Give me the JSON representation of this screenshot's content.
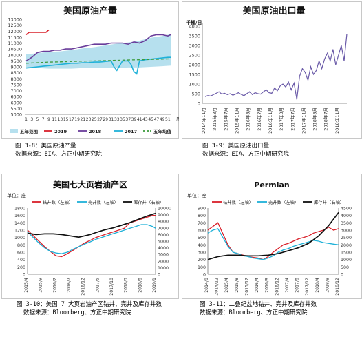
{
  "charts": [
    {
      "type": "line",
      "title": "美国原油产量",
      "ylabel": "",
      "xlabel": "",
      "x_unit_label": "周",
      "ylim": [
        5000,
        13000
      ],
      "yticks": [
        5000,
        5500,
        6000,
        6500,
        7000,
        7500,
        8000,
        8500,
        9000,
        9500,
        10000,
        10500,
        11000,
        11500,
        12000,
        12500,
        13000
      ],
      "xticks": [
        1,
        3,
        5,
        7,
        9,
        11,
        13,
        15,
        17,
        19,
        21,
        23,
        25,
        27,
        29,
        31,
        33,
        35,
        37,
        39,
        41,
        43,
        45,
        47,
        49,
        51
      ],
      "band": {
        "name": "五年范围",
        "x": [
          1,
          5,
          9,
          13,
          17,
          21,
          25,
          29,
          33,
          37,
          41,
          45,
          49,
          52
        ],
        "low": [
          8950,
          8900,
          8850,
          8850,
          8850,
          8900,
          8900,
          8900,
          8900,
          8950,
          8950,
          9000,
          9050,
          9100
        ],
        "high": [
          10050,
          10150,
          10250,
          10300,
          10400,
          10550,
          10650,
          10800,
          10950,
          11050,
          11200,
          11450,
          11600,
          11750
        ]
      },
      "series": [
        {
          "name": "2019",
          "color": "#d9202a",
          "x": [
            1,
            2,
            4,
            6,
            8,
            9
          ],
          "values": [
            11700,
            11900,
            11900,
            11900,
            11900,
            12100
          ]
        },
        {
          "name": "2018",
          "color": "#6a3d9a",
          "x": [
            1,
            3,
            5,
            7,
            9,
            11,
            13,
            15,
            17,
            19,
            21,
            23,
            25,
            27,
            29,
            31,
            33,
            35,
            37,
            39,
            41,
            43,
            45,
            47,
            49,
            51,
            52
          ],
          "values": [
            9500,
            9800,
            10200,
            10300,
            10300,
            10400,
            10400,
            10500,
            10500,
            10600,
            10700,
            10800,
            10900,
            10900,
            10900,
            11000,
            11000,
            11000,
            10900,
            11100,
            11000,
            11200,
            11600,
            11700,
            11700,
            11600,
            11700
          ]
        },
        {
          "name": "2017",
          "color": "#1fb1d8",
          "x": [
            1,
            3,
            5,
            7,
            9,
            11,
            13,
            15,
            17,
            19,
            21,
            23,
            25,
            27,
            29,
            31,
            32,
            33,
            35,
            37,
            38,
            39,
            40,
            41,
            43,
            45,
            47,
            49,
            51,
            52
          ],
          "values": [
            8900,
            8950,
            9000,
            9050,
            9100,
            9150,
            9200,
            9250,
            9300,
            9300,
            9350,
            9350,
            9400,
            9400,
            9450,
            9500,
            9000,
            8700,
            9500,
            9500,
            9200,
            8600,
            8400,
            9500,
            9600,
            9650,
            9700,
            9750,
            9800,
            9800
          ]
        },
        {
          "name": "五年均值",
          "color": "#3b9a3b",
          "dash": true,
          "x": [
            1,
            5,
            9,
            13,
            17,
            21,
            25,
            29,
            33,
            37,
            41,
            45,
            49,
            52
          ],
          "values": [
            9300,
            9350,
            9400,
            9420,
            9450,
            9480,
            9500,
            9520,
            9550,
            9580,
            9600,
            9620,
            9650,
            9680
          ]
        }
      ]
    },
    {
      "type": "line",
      "title": "美国原油出口量",
      "ylabel": "千桶/日",
      "ylim": [
        0,
        4000
      ],
      "yticks": [
        0,
        500,
        1000,
        1500,
        2000,
        2500,
        3000,
        3500,
        4000
      ],
      "xlim": [
        0,
        51
      ],
      "xticks": [
        {
          "label": "2014年11月",
          "x": 0
        },
        {
          "label": "2015年3月",
          "x": 4
        },
        {
          "label": "2015年7月",
          "x": 8
        },
        {
          "label": "2015年11月",
          "x": 12
        },
        {
          "label": "2016年3月",
          "x": 16
        },
        {
          "label": "2016年7月",
          "x": 20
        },
        {
          "label": "2016年11月",
          "x": 24
        },
        {
          "label": "2017年3月",
          "x": 28
        },
        {
          "label": "2017年7月",
          "x": 32
        },
        {
          "label": "2017年11月",
          "x": 36
        },
        {
          "label": "2018年3月",
          "x": 40
        },
        {
          "label": "2018年7月",
          "x": 44
        },
        {
          "label": "2018年11月",
          "x": 48
        }
      ],
      "series": [
        {
          "name": "",
          "color": "#6a5aa8",
          "x": [
            0,
            1,
            2,
            3,
            4,
            5,
            6,
            7,
            8,
            9,
            10,
            11,
            12,
            13,
            14,
            15,
            16,
            17,
            18,
            19,
            20,
            21,
            22,
            23,
            24,
            25,
            26,
            27,
            28,
            29,
            30,
            31,
            32,
            33,
            34,
            35,
            36,
            37,
            38,
            39,
            40,
            41,
            42,
            43,
            44,
            45,
            46,
            47,
            48,
            49,
            50,
            51
          ],
          "values": [
            350,
            400,
            380,
            450,
            520,
            600,
            480,
            520,
            450,
            500,
            420,
            480,
            550,
            460,
            400,
            500,
            600,
            450,
            550,
            500,
            480,
            600,
            700,
            550,
            520,
            800,
            650,
            900,
            1000,
            850,
            1100,
            700,
            1050,
            200,
            1400,
            1800,
            1600,
            1200,
            1900,
            1500,
            1700,
            2200,
            1800,
            2300,
            2600,
            2200,
            2800,
            2000,
            2500,
            3000,
            2200,
            3600
          ]
        }
      ]
    },
    {
      "type": "line",
      "title": "美国七大页岩油产区",
      "ylabel": "单位：座",
      "ylim": [
        0,
        1800
      ],
      "yticks": [
        0,
        200,
        400,
        600,
        800,
        1000,
        1200,
        1400,
        1600,
        1800
      ],
      "y2lim": [
        0,
        10000
      ],
      "y2ticks": [
        0,
        1000,
        2000,
        3000,
        4000,
        5000,
        6000,
        7000,
        8000,
        9000,
        10000
      ],
      "xticks": [
        "2015/4",
        "2015/9",
        "2016/2",
        "2016/7",
        "2016/12",
        "2017/5",
        "2017/10",
        "2018/3",
        "2018/8",
        "2019/1"
      ],
      "xlim": [
        0,
        45
      ],
      "legend": [
        "钻井数（左轴）",
        "完井数（左轴）",
        "库存井（右轴）"
      ],
      "series": [
        {
          "name": "钻井数（左轴）",
          "axis": "left",
          "color": "#d9202a",
          "x": [
            0,
            2,
            4,
            6,
            8,
            10,
            12,
            14,
            16,
            18,
            20,
            22,
            24,
            26,
            28,
            30,
            32,
            34,
            36,
            38,
            40,
            42,
            44,
            45
          ],
          "values": [
            1200,
            1050,
            900,
            750,
            620,
            500,
            480,
            560,
            650,
            750,
            850,
            920,
            1000,
            1050,
            1100,
            1150,
            1200,
            1250,
            1400,
            1450,
            1500,
            1550,
            1600,
            1600
          ]
        },
        {
          "name": "完井数（左轴）",
          "axis": "left",
          "color": "#1fb1d8",
          "x": [
            0,
            2,
            4,
            6,
            8,
            10,
            12,
            14,
            16,
            18,
            20,
            22,
            24,
            26,
            28,
            30,
            32,
            34,
            36,
            38,
            40,
            42,
            44,
            45
          ],
          "values": [
            1150,
            1000,
            850,
            720,
            620,
            580,
            560,
            600,
            680,
            750,
            820,
            880,
            950,
            1000,
            1050,
            1100,
            1150,
            1200,
            1250,
            1300,
            1350,
            1350,
            1300,
            1250
          ]
        },
        {
          "name": "库存井（右轴）",
          "axis": "right",
          "color": "#111111",
          "x": [
            0,
            3,
            6,
            9,
            12,
            15,
            18,
            20,
            22,
            24,
            27,
            30,
            33,
            36,
            39,
            42,
            45
          ],
          "values": [
            6200,
            6000,
            6100,
            6100,
            6000,
            5800,
            5600,
            5800,
            6000,
            6300,
            6700,
            7000,
            7400,
            7800,
            8300,
            8800,
            9200
          ]
        }
      ]
    },
    {
      "type": "line",
      "title": "Permian",
      "ylabel": "单位：座",
      "ylim": [
        0,
        900
      ],
      "yticks": [
        0,
        100,
        200,
        300,
        400,
        500,
        600,
        700,
        800,
        900
      ],
      "y2lim": [
        0,
        4500
      ],
      "y2ticks": [
        0,
        500,
        1000,
        1500,
        2000,
        2500,
        3000,
        3500,
        4000,
        4500
      ],
      "xticks": [
        "2014/8",
        "2014/12",
        "2015/4",
        "2015/8",
        "2015/12",
        "2016/4",
        "2016/8",
        "2016/12",
        "2017/4",
        "2017/8",
        "2017/12",
        "2018/4",
        "2018/8",
        "2018/12"
      ],
      "xlim": [
        0,
        52
      ],
      "legend": [
        "钻井数（左轴）",
        "完井数（左轴）",
        "库存井（右轴）"
      ],
      "series": [
        {
          "name": "钻井数（左轴）",
          "axis": "left",
          "color": "#d9202a",
          "x": [
            0,
            2,
            4,
            6,
            8,
            10,
            12,
            14,
            16,
            18,
            20,
            22,
            24,
            26,
            28,
            30,
            32,
            34,
            36,
            38,
            40,
            42,
            44,
            46,
            48,
            50,
            52
          ],
          "values": [
            600,
            650,
            700,
            550,
            400,
            300,
            280,
            260,
            240,
            230,
            220,
            200,
            240,
            300,
            350,
            400,
            420,
            450,
            480,
            500,
            520,
            560,
            580,
            600,
            640,
            600,
            620
          ]
        },
        {
          "name": "完井数（左轴）",
          "axis": "left",
          "color": "#1fb1d8",
          "x": [
            0,
            2,
            4,
            6,
            8,
            10,
            12,
            14,
            16,
            18,
            20,
            22,
            24,
            26,
            28,
            30,
            32,
            34,
            36,
            38,
            40,
            42,
            44,
            46,
            48,
            50,
            52
          ],
          "values": [
            560,
            600,
            620,
            500,
            380,
            300,
            280,
            250,
            240,
            220,
            210,
            200,
            220,
            250,
            300,
            330,
            350,
            380,
            400,
            420,
            440,
            460,
            450,
            430,
            420,
            410,
            400
          ]
        },
        {
          "name": "库存井（右轴）",
          "axis": "right",
          "color": "#111111",
          "x": [
            0,
            4,
            8,
            12,
            16,
            20,
            24,
            28,
            32,
            36,
            40,
            44,
            48,
            52
          ],
          "values": [
            1000,
            1200,
            1300,
            1300,
            1250,
            1250,
            1300,
            1400,
            1600,
            1800,
            2100,
            2600,
            3300,
            4200
          ]
        }
      ]
    }
  ],
  "captions": [
    {
      "line1": "图 3-8：美国原油产量",
      "line2": "数据来源：EIA、方正中期研究院"
    },
    {
      "line1": "图 3-9：美国原油出口量",
      "line2": "数据来源：EIA、方正中期研究院"
    },
    {
      "line1": "图 3-10：美国 7 大页岩油产区钻井、完井及库存井数",
      "line2": "数据来源：Bloomberg、方正中期研究院"
    },
    {
      "line1": "图 3-11：二叠纪盆地钻井、完井及库存井数",
      "line2": "数据来源：Bloomberg、方正中期研究院"
    }
  ]
}
